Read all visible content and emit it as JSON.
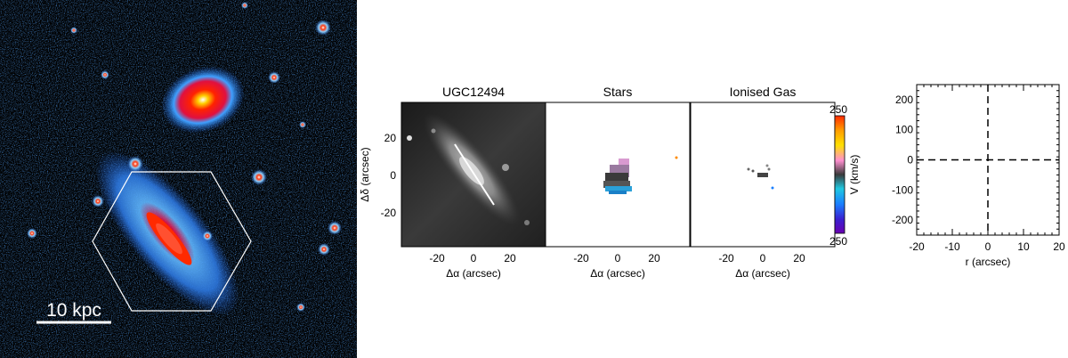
{
  "colors": {
    "background_dark": "#000000",
    "sky_blue": "#1a57c8",
    "cmap_top": "#ff2a00",
    "cmap_bottom": "#6a00b0"
  },
  "galaxy_image": {
    "scale_bar_label": "10 kpc"
  },
  "maps": {
    "panel1_title": "UGC12494",
    "panel2_title": "Stars",
    "panel3_title": "Ionised Gas",
    "ylabel": "Δδ (arcsec)",
    "xlabel_1": "Δα (arcsec)",
    "xlabel_2": "Δα  (arcsec)",
    "xlabel_3": "Δα  (arcsec)",
    "xticks": [
      "-20",
      "0",
      "20"
    ],
    "yticks": [
      "20",
      "0",
      "-20"
    ],
    "colorbar": {
      "label": "V (km/s)",
      "top": "250",
      "bottom": "250"
    }
  },
  "chart_data": {
    "type": "scatter",
    "title": "",
    "xlabel": "r (arcsec)",
    "ylabel": "",
    "xlim": [
      -20,
      20
    ],
    "ylim": [
      -250,
      250
    ],
    "xticks": [
      -20,
      -10,
      0,
      10,
      20
    ],
    "yticks": [
      -200,
      -100,
      0,
      100,
      200
    ],
    "series": [],
    "reference_lines": {
      "x": 0,
      "y": 0,
      "style": "dashed"
    },
    "grid": false
  }
}
